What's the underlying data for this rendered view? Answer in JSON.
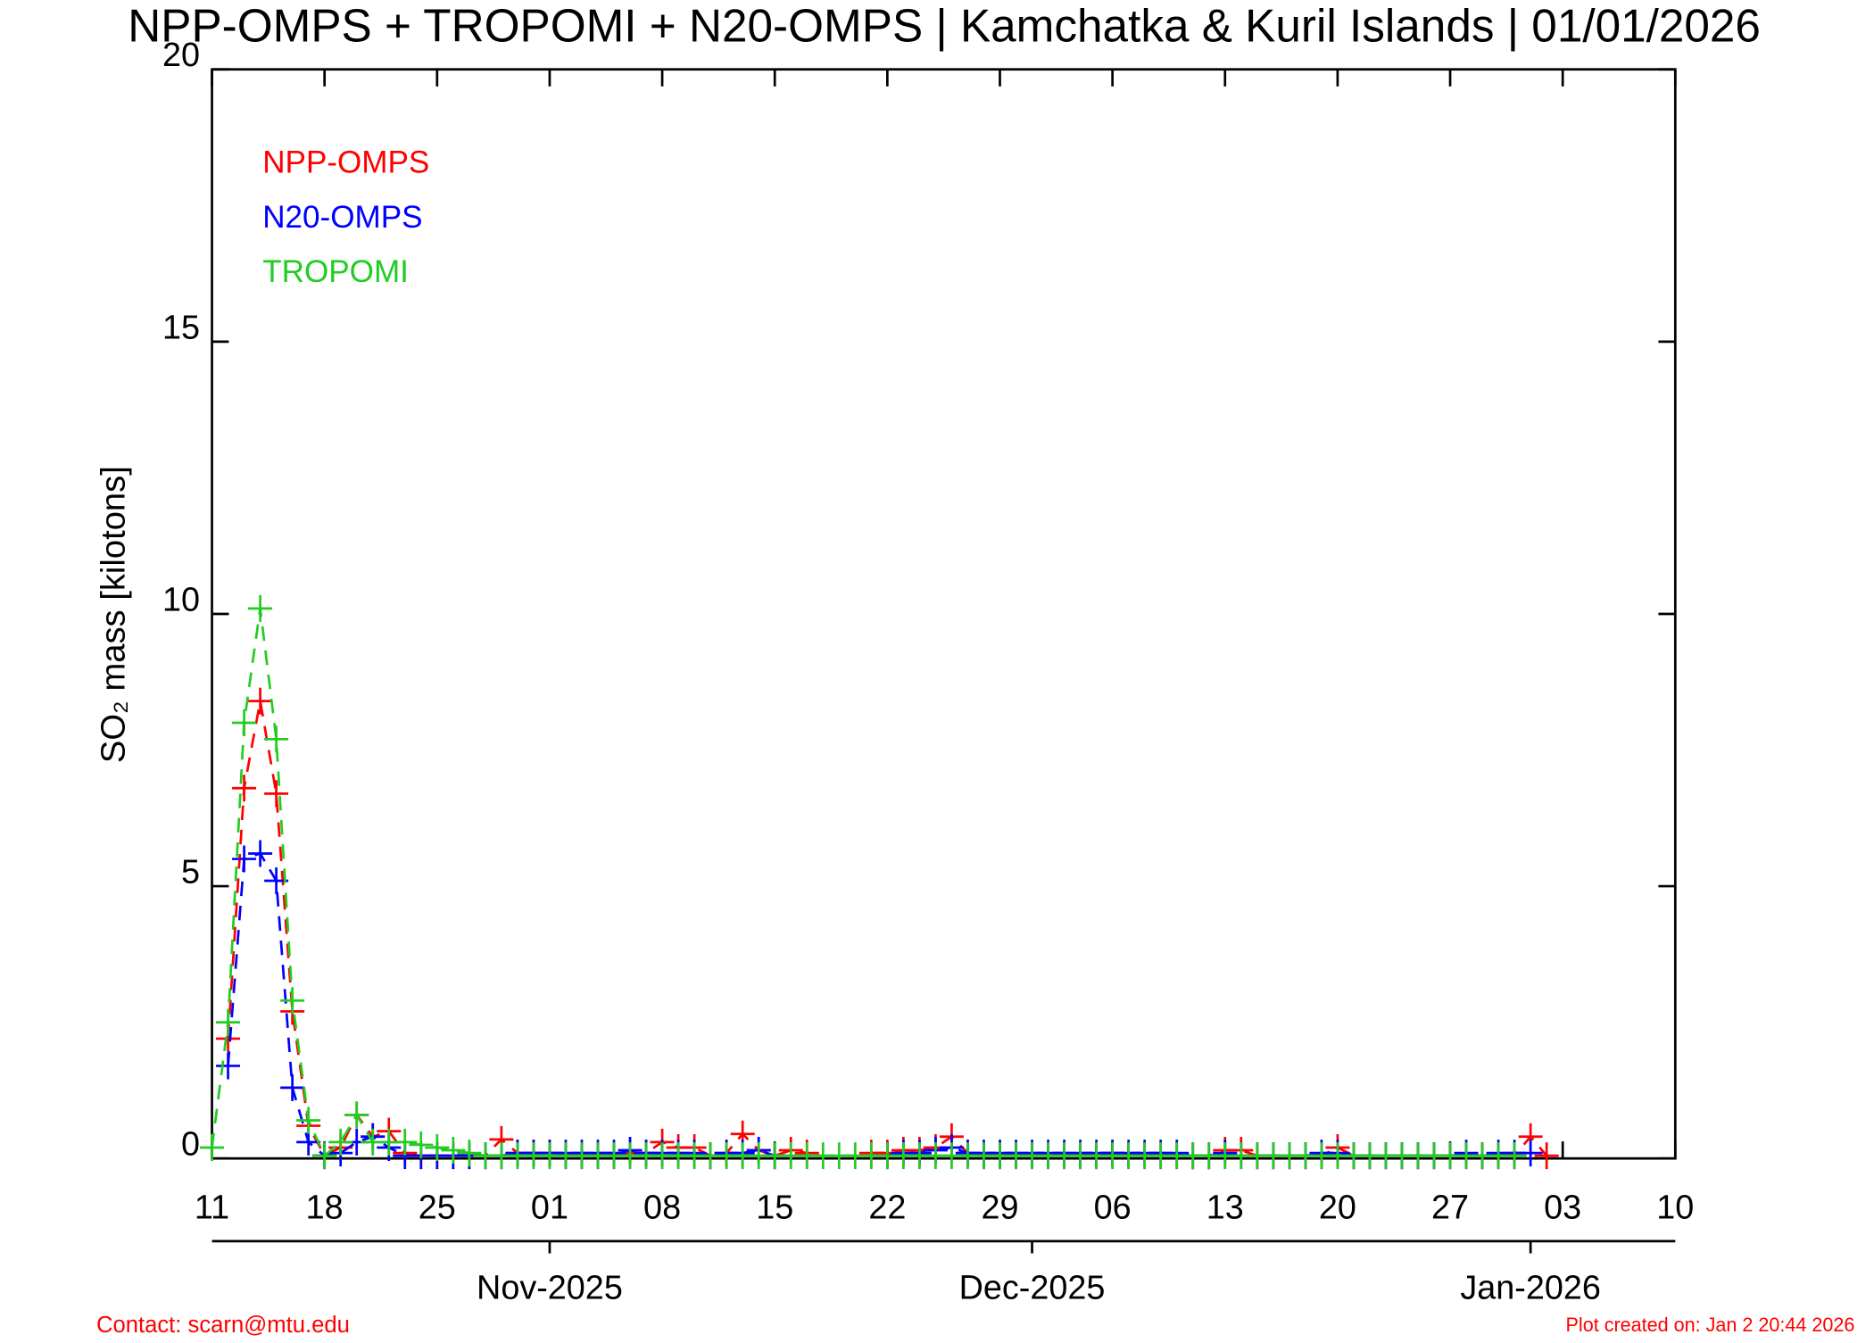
{
  "chart_data": {
    "type": "line",
    "title": "NPP-OMPS + TROPOMI + N20-OMPS | Kamchatka & Kuril Islands | 01/01/2026",
    "y_label": "SO₂ mass [kilotons]",
    "footer_left": "Contact: scarn@mtu.edu",
    "footer_right": "Plot created on: Jan  2 20:44 2026",
    "x": [
      "2025-10-11",
      "2025-10-12",
      "2025-10-13",
      "2025-10-14",
      "2025-10-15",
      "2025-10-16",
      "2025-10-17",
      "2025-10-18",
      "2025-10-19",
      "2025-10-20",
      "2025-10-21",
      "2025-10-22",
      "2025-10-23",
      "2025-10-24",
      "2025-10-25",
      "2025-10-26",
      "2025-10-27",
      "2025-10-28",
      "2025-10-29",
      "2025-10-30",
      "2025-10-31",
      "2025-11-01",
      "2025-11-02",
      "2025-11-03",
      "2025-11-04",
      "2025-11-05",
      "2025-11-06",
      "2025-11-07",
      "2025-11-08",
      "2025-11-09",
      "2025-11-10",
      "2025-11-11",
      "2025-11-12",
      "2025-11-13",
      "2025-11-14",
      "2025-11-15",
      "2025-11-16",
      "2025-11-17",
      "2025-11-18",
      "2025-11-19",
      "2025-11-20",
      "2025-11-21",
      "2025-11-22",
      "2025-11-23",
      "2025-11-24",
      "2025-11-25",
      "2025-11-26",
      "2025-11-27",
      "2025-11-28",
      "2025-11-29",
      "2025-11-30",
      "2025-12-01",
      "2025-12-02",
      "2025-12-03",
      "2025-12-04",
      "2025-12-05",
      "2025-12-06",
      "2025-12-07",
      "2025-12-08",
      "2025-12-09",
      "2025-12-10",
      "2025-12-11",
      "2025-12-12",
      "2025-12-13",
      "2025-12-14",
      "2025-12-15",
      "2025-12-16",
      "2025-12-17",
      "2025-12-18",
      "2025-12-19",
      "2025-12-20",
      "2025-12-21",
      "2025-12-22",
      "2025-12-23",
      "2025-12-24",
      "2025-12-25",
      "2025-12-26",
      "2025-12-27",
      "2025-12-28",
      "2025-12-29",
      "2025-12-30",
      "2025-12-31",
      "2026-01-01",
      "2026-01-02"
    ],
    "series": [
      {
        "name": "NPP-OMPS",
        "color": "#ff0000",
        "values": [
          null,
          2.2,
          6.8,
          8.4,
          6.7,
          2.7,
          0.6,
          0.05,
          0.2,
          0.8,
          0.4,
          0.5,
          0.1,
          0.05,
          0.05,
          0.05,
          0.05,
          0.05,
          0.35,
          0.1,
          0.1,
          0.1,
          0.05,
          0.05,
          0.05,
          0.05,
          0.1,
          0.1,
          0.3,
          0.2,
          0.2,
          0.05,
          0.1,
          0.45,
          0.15,
          0.05,
          0.15,
          0.1,
          null,
          null,
          null,
          0.1,
          0.1,
          0.15,
          0.15,
          0.2,
          0.4,
          0.1,
          0.05,
          0.05,
          0.05,
          0.05,
          0.05,
          0.05,
          0.05,
          0.05,
          0.1,
          0.05,
          0.05,
          0.05,
          0.05,
          0.05,
          0.05,
          0.15,
          0.15,
          0.05,
          0.05,
          0.05,
          0.05,
          0.05,
          0.2,
          0.05,
          0.05,
          0.05,
          0.05,
          0.05,
          0.05,
          0.05,
          0.05,
          0.05,
          0.05,
          0.05,
          0.4,
          0.05
        ]
      },
      {
        "name": "N20-OMPS",
        "color": "#0000ff",
        "values": [
          null,
          1.7,
          5.5,
          5.6,
          5.1,
          1.3,
          0.3,
          0.05,
          0.1,
          0.3,
          0.4,
          0.2,
          0.05,
          0.05,
          0.05,
          0.05,
          0.05,
          0.05,
          0.05,
          0.1,
          0.1,
          0.1,
          0.1,
          0.1,
          0.1,
          0.1,
          0.15,
          0.1,
          0.1,
          0.1,
          0.1,
          0.05,
          0.1,
          0.1,
          0.15,
          0.05,
          null,
          null,
          null,
          null,
          null,
          null,
          0.05,
          0.1,
          0.1,
          0.15,
          0.2,
          0.1,
          0.1,
          0.1,
          0.1,
          0.1,
          0.1,
          0.1,
          0.1,
          0.1,
          0.1,
          0.1,
          0.1,
          0.1,
          0.1,
          0.05,
          0.05,
          0.1,
          0.05,
          0.05,
          0.05,
          0.05,
          0.05,
          0.1,
          0.1,
          0.05,
          0.05,
          0.05,
          0.05,
          0.05,
          0.05,
          0.05,
          0.1,
          0.05,
          0.1,
          0.1,
          0.1,
          null
        ]
      },
      {
        "name": "TROPOMI",
        "color": "#22cc22",
        "values": [
          0.2,
          2.5,
          8.0,
          10.1,
          7.7,
          2.9,
          0.7,
          0.05,
          0.3,
          0.8,
          0.3,
          0.3,
          0.3,
          0.25,
          0.2,
          0.15,
          0.1,
          0.05,
          0.05,
          0.05,
          0.05,
          0.05,
          0.05,
          0.05,
          0.05,
          0.05,
          0.05,
          0.05,
          0.05,
          0.05,
          0.05,
          0.05,
          0.05,
          0.05,
          0.05,
          0.05,
          0.05,
          0.05,
          0.05,
          0.05,
          0.05,
          0.05,
          0.05,
          0.05,
          0.05,
          0.05,
          0.05,
          0.05,
          0.05,
          0.05,
          0.05,
          0.05,
          0.05,
          0.05,
          0.05,
          0.05,
          0.05,
          0.05,
          0.05,
          0.05,
          0.05,
          0.05,
          0.05,
          0.05,
          0.05,
          0.05,
          0.05,
          0.05,
          0.05,
          0.05,
          0.05,
          0.05,
          0.05,
          0.05,
          0.05,
          0.05,
          0.05,
          0.05,
          0.05,
          0.05,
          0.05,
          0.05,
          null,
          null
        ]
      }
    ],
    "xlim": [
      "2025-10-11",
      "2026-01-10"
    ],
    "xticks": [
      {
        "value": "2025-10-11",
        "label": "11"
      },
      {
        "value": "2025-10-18",
        "label": "18"
      },
      {
        "value": "2025-10-25",
        "label": "25"
      },
      {
        "value": "2025-11-01",
        "label": "01"
      },
      {
        "value": "2025-11-08",
        "label": "08"
      },
      {
        "value": "2025-11-15",
        "label": "15"
      },
      {
        "value": "2025-11-22",
        "label": "22"
      },
      {
        "value": "2025-11-29",
        "label": "29"
      },
      {
        "value": "2025-12-06",
        "label": "06"
      },
      {
        "value": "2025-12-13",
        "label": "13"
      },
      {
        "value": "2025-12-20",
        "label": "20"
      },
      {
        "value": "2025-12-27",
        "label": "27"
      },
      {
        "value": "2026-01-03",
        "label": "03"
      },
      {
        "value": "2026-01-10",
        "label": "10"
      }
    ],
    "month_ticks": [
      {
        "value": "2025-11-01",
        "label": "Nov-2025"
      },
      {
        "value": "2025-12-01",
        "label": "Dec-2025"
      },
      {
        "value": "2026-01-01",
        "label": "Jan-2026"
      }
    ],
    "ylim": [
      0,
      20
    ],
    "yticks": [
      0,
      5,
      10,
      15,
      20
    ],
    "legend": "upper-left"
  }
}
